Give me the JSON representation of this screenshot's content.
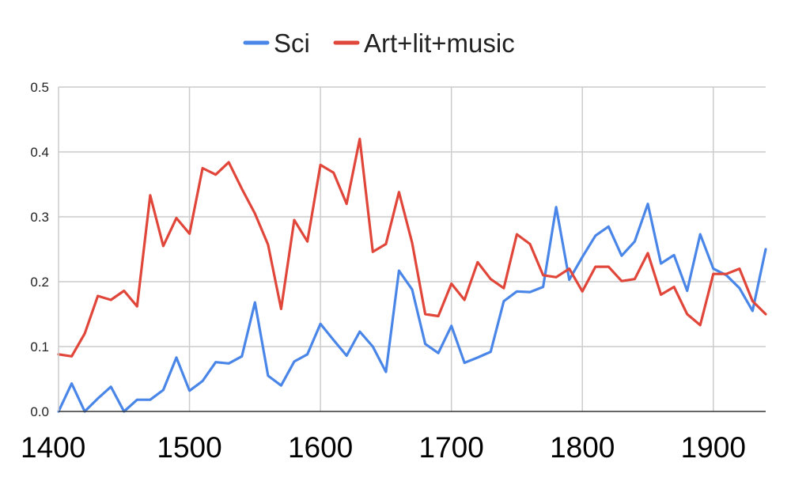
{
  "chart_data": {
    "type": "line",
    "title": "",
    "xlabel": "",
    "ylabel": "",
    "xlim": [
      1400,
      1940
    ],
    "ylim": [
      0,
      0.5
    ],
    "x_ticks": [
      1400,
      1500,
      1600,
      1700,
      1800,
      1900
    ],
    "y_ticks": [
      0.0,
      0.1,
      0.2,
      0.3,
      0.4,
      0.5
    ],
    "y_tick_labels": [
      "0.0",
      "0.1",
      "0.2",
      "0.3",
      "0.4",
      "0.5"
    ],
    "grid": true,
    "legend_position": "top",
    "x": [
      1400,
      1410,
      1420,
      1430,
      1440,
      1450,
      1460,
      1470,
      1480,
      1490,
      1500,
      1510,
      1520,
      1530,
      1540,
      1550,
      1560,
      1570,
      1580,
      1590,
      1600,
      1610,
      1620,
      1630,
      1640,
      1650,
      1660,
      1670,
      1680,
      1690,
      1700,
      1710,
      1720,
      1730,
      1740,
      1750,
      1760,
      1770,
      1780,
      1790,
      1800,
      1810,
      1820,
      1830,
      1840,
      1850,
      1860,
      1870,
      1880,
      1890,
      1900,
      1910,
      1920,
      1930,
      1940
    ],
    "series": [
      {
        "name": "Sci",
        "color": "#4a86e8",
        "values": [
          0.0,
          0.043,
          0.0,
          0.02,
          0.038,
          0.0,
          0.018,
          0.018,
          0.033,
          0.083,
          0.032,
          0.047,
          0.076,
          0.074,
          0.085,
          0.168,
          0.055,
          0.04,
          0.077,
          0.088,
          0.135,
          0.11,
          0.086,
          0.123,
          0.1,
          0.061,
          0.217,
          0.188,
          0.104,
          0.09,
          0.132,
          0.075,
          0.083,
          0.092,
          0.17,
          0.185,
          0.184,
          0.192,
          0.315,
          0.203,
          0.238,
          0.271,
          0.285,
          0.24,
          0.262,
          0.32,
          0.228,
          0.241,
          0.186,
          0.273,
          0.22,
          0.21,
          0.19,
          0.155,
          0.25
        ]
      },
      {
        "name": "Art+lit+music",
        "color": "#e0463a",
        "values": [
          0.088,
          0.085,
          0.12,
          0.178,
          0.172,
          0.186,
          0.162,
          0.333,
          0.255,
          0.298,
          0.274,
          0.375,
          0.365,
          0.384,
          0.343,
          0.305,
          0.257,
          0.158,
          0.295,
          0.262,
          0.38,
          0.368,
          0.32,
          0.42,
          0.246,
          0.258,
          0.338,
          0.26,
          0.15,
          0.147,
          0.197,
          0.172,
          0.23,
          0.204,
          0.19,
          0.273,
          0.258,
          0.21,
          0.207,
          0.22,
          0.185,
          0.223,
          0.223,
          0.201,
          0.204,
          0.244,
          0.18,
          0.192,
          0.15,
          0.133,
          0.212,
          0.212,
          0.22,
          0.17,
          0.15
        ]
      }
    ]
  }
}
